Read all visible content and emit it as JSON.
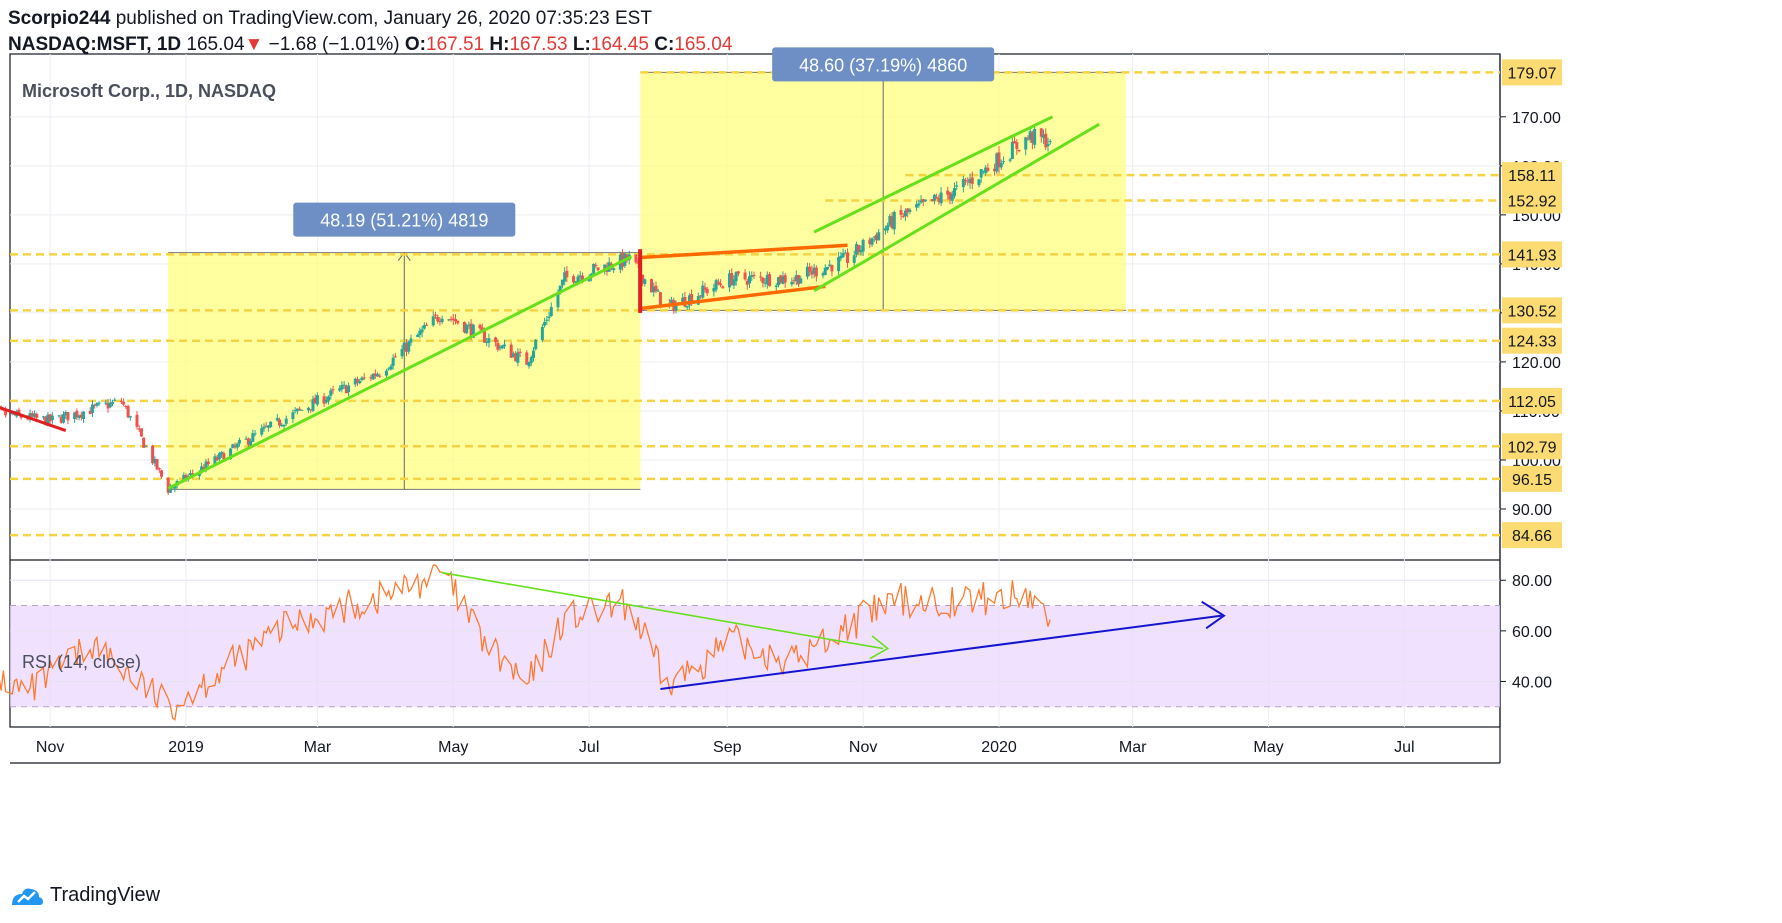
{
  "header": {
    "publisher": "Scorpio244",
    "published_text": "published on TradingView.com, January 26, 2020 07:35:23 EST",
    "symbol": "NASDAQ:MSFT, 1D",
    "last": "165.04",
    "change": "−1.68 (−1.01%)",
    "open_label": "O:",
    "open": "167.51",
    "high_label": "H:",
    "high": "167.53",
    "low_label": "L:",
    "low": "164.45",
    "close_label": "C:",
    "close": "165.04"
  },
  "price_pane_title": "Microsoft Corp., 1D, NASDAQ",
  "rsi_pane_title": "RSI (14, close)",
  "brand": "TradingView",
  "colors": {
    "candle_up": "#26a69a",
    "candle_down": "#ef5350",
    "highlight_zone": "#ffff80",
    "level_line": "#f5d442",
    "trendline": "#66e01a",
    "channel": "#ff6a00",
    "rsi_line": "#ff7a30",
    "rsi_band": "#ead5ff",
    "rsi_trend": "#1515d0",
    "label_box": "#6d8fc6",
    "price_label_bg": "#fbdb72"
  },
  "chart_data": [
    {
      "type": "candlestick",
      "title": "Microsoft Corp., 1D, NASDAQ",
      "x_ticks": [
        "Nov",
        "2019",
        "Mar",
        "May",
        "Jul",
        "Sep",
        "Nov",
        "2020",
        "Mar",
        "May",
        "Jul"
      ],
      "y_ticks": [
        "90.00",
        "100.00",
        "110.00",
        "120.00",
        "130.00",
        "140.00",
        "150.00",
        "160.00",
        "170.00"
      ],
      "ylim": [
        80,
        182
      ],
      "level_labels": [
        "179.07",
        "158.11",
        "152.92",
        "141.93",
        "130.52",
        "124.33",
        "112.05",
        "102.79",
        "96.15",
        "84.66"
      ],
      "measure_labels": [
        "48.19 (51.21%) 4819",
        "48.60 (37.19%) 4860"
      ],
      "trend_keypoints": [
        {
          "date": "2018-10-01",
          "value": 110
        },
        {
          "date": "2018-11-01",
          "value": 108
        },
        {
          "date": "2018-12-03",
          "value": 112
        },
        {
          "date": "2018-12-24",
          "value": 94
        },
        {
          "date": "2019-02-01",
          "value": 105
        },
        {
          "date": "2019-03-01",
          "value": 112
        },
        {
          "date": "2019-03-29",
          "value": 118
        },
        {
          "date": "2019-04-26",
          "value": 130
        },
        {
          "date": "2019-05-15",
          "value": 125
        },
        {
          "date": "2019-06-03",
          "value": 120
        },
        {
          "date": "2019-06-20",
          "value": 137
        },
        {
          "date": "2019-07-19",
          "value": 141
        },
        {
          "date": "2019-08-05",
          "value": 131
        },
        {
          "date": "2019-09-03",
          "value": 137
        },
        {
          "date": "2019-10-01",
          "value": 137
        },
        {
          "date": "2019-10-25",
          "value": 141
        },
        {
          "date": "2019-11-15",
          "value": 149
        },
        {
          "date": "2019-12-13",
          "value": 155
        },
        {
          "date": "2020-01-15",
          "value": 166
        },
        {
          "date": "2020-01-24",
          "value": 165
        }
      ],
      "last_close": 165.04
    },
    {
      "type": "line",
      "title": "RSI (14, close)",
      "y_ticks": [
        "40.00",
        "60.00",
        "80.00"
      ],
      "ylim": [
        22,
        88
      ],
      "band": [
        30,
        70
      ],
      "rsi_keypoints": [
        {
          "date": "2018-10-01",
          "value": 45
        },
        {
          "date": "2018-10-22",
          "value": 35
        },
        {
          "date": "2018-11-20",
          "value": 55
        },
        {
          "date": "2018-12-24",
          "value": 30
        },
        {
          "date": "2019-02-15",
          "value": 62
        },
        {
          "date": "2019-03-29",
          "value": 73
        },
        {
          "date": "2019-04-26",
          "value": 83
        },
        {
          "date": "2019-05-15",
          "value": 55
        },
        {
          "date": "2019-06-03",
          "value": 38
        },
        {
          "date": "2019-06-20",
          "value": 65
        },
        {
          "date": "2019-07-19",
          "value": 70
        },
        {
          "date": "2019-08-05",
          "value": 38
        },
        {
          "date": "2019-09-03",
          "value": 56
        },
        {
          "date": "2019-10-01",
          "value": 48
        },
        {
          "date": "2019-10-25",
          "value": 62
        },
        {
          "date": "2019-11-15",
          "value": 72
        },
        {
          "date": "2019-12-13",
          "value": 72
        },
        {
          "date": "2020-01-15",
          "value": 74
        },
        {
          "date": "2020-01-24",
          "value": 64
        }
      ]
    }
  ]
}
